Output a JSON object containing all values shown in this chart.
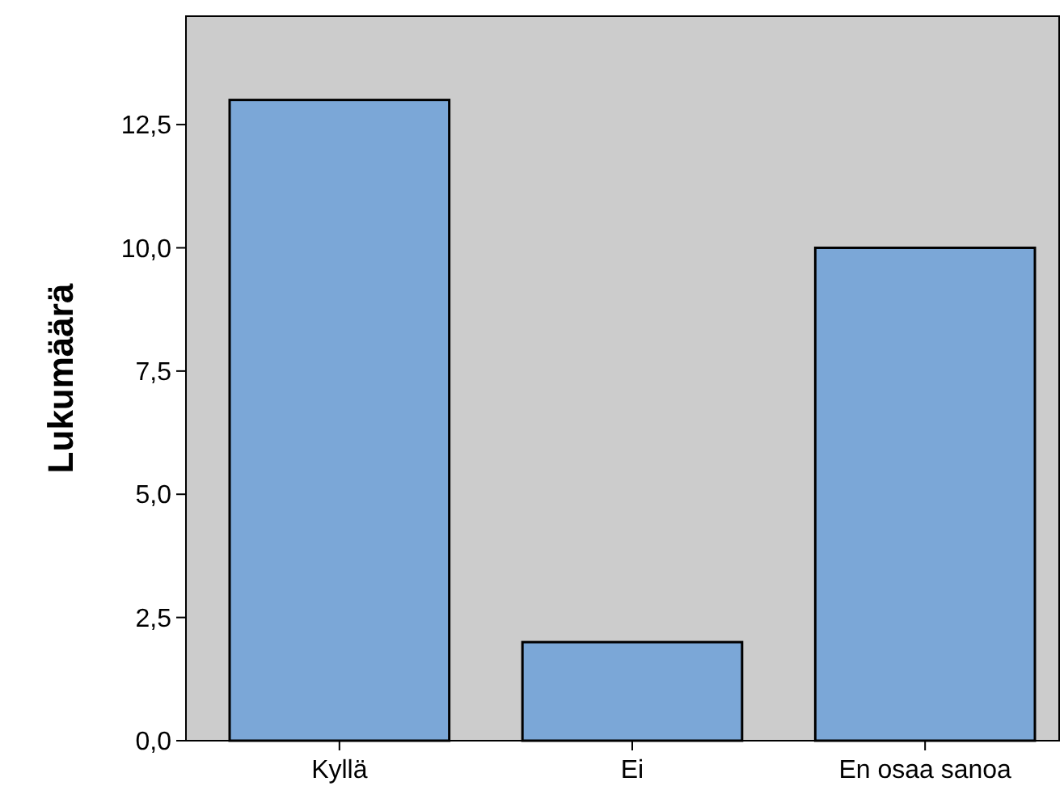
{
  "chart_data": {
    "type": "bar",
    "ylabel": "Lukumäärä",
    "categories": [
      "Kyllä",
      "Ei",
      "En osaa sanoa"
    ],
    "values": [
      13,
      2,
      10
    ],
    "color": "#7ba7d7",
    "ylim": [
      0,
      14.7
    ],
    "yticks": [
      {
        "value": 0,
        "label": "0,0"
      },
      {
        "value": 2.5,
        "label": "2,5"
      },
      {
        "value": 5,
        "label": "5,0"
      },
      {
        "value": 7.5,
        "label": "7,5"
      },
      {
        "value": 10,
        "label": "10,0"
      },
      {
        "value": 12.5,
        "label": "12,5"
      }
    ],
    "grid": false
  }
}
